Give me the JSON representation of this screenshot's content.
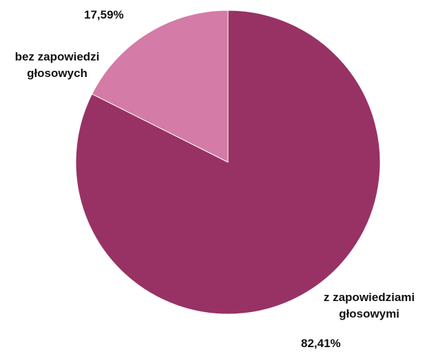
{
  "chart_data": {
    "type": "pie",
    "title": "",
    "slices": [
      {
        "label_lines": [
          "bez zapowiedzi",
          "głosowych"
        ],
        "value": 17.59,
        "value_label": "17,59%",
        "color": "#d47ba7"
      },
      {
        "label_lines": [
          "z zapowiedziami",
          "głosowymi"
        ],
        "value": 82.41,
        "value_label": "82,41%",
        "color": "#983264"
      }
    ],
    "start_angle_deg": 0,
    "direction": "counterclockwise",
    "legend": "none"
  }
}
